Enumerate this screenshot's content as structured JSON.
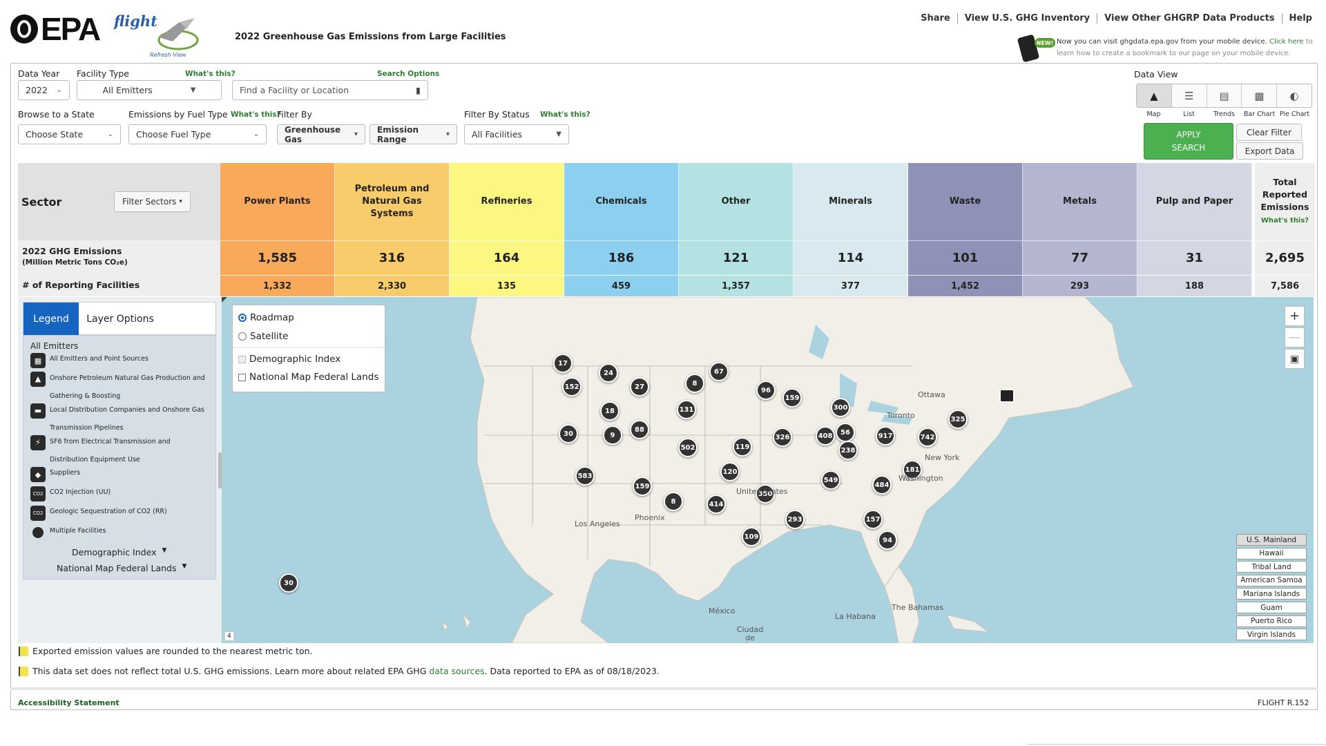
{
  "header": {
    "epa_logo": "EPA",
    "flight_logo": "flight",
    "flight_logo_caption": "Refresh View",
    "page_title": "2022 Greenhouse Gas Emissions from Large Facilities",
    "nav": [
      "Share",
      "View U.S. GHG Inventory",
      "View Other GHGRP Data Products",
      "Help"
    ],
    "new_badge": "NEW!",
    "mobile_notice_1": "Now you can visit ghgdata.epa.gov from your mobile device.",
    "mobile_notice_link": "Click here",
    "mobile_notice_2": "to learn how to create a bookmark to our page on your mobile device."
  },
  "filters": {
    "data_year_label": "Data Year",
    "data_year_value": "2022",
    "facility_type_label": "Facility Type",
    "facility_type_whats_this": "What's this?",
    "facility_type_value": "All Emitters",
    "search_options": "Search Options",
    "search_placeholder": "Find a Facility or Location",
    "browse_state_label": "Browse to a State",
    "browse_state_value": "Choose State",
    "fuel_type_label": "Emissions by Fuel Type",
    "fuel_type_whats_this": "What's this?",
    "fuel_type_value": "Choose Fuel Type",
    "filter_by_label": "Filter By",
    "greenhouse_gas": "Greenhouse Gas",
    "emission_range": "Emission Range",
    "filter_status_label": "Filter By Status",
    "filter_status_whats_this": "What's this?",
    "filter_status_value": "All Facilities"
  },
  "data_view": {
    "label": "Data View",
    "options": [
      "Map",
      "List",
      "Trends",
      "Bar Chart",
      "Pie Chart"
    ],
    "active": "Map",
    "apply_line1": "APPLY",
    "apply_line2": "SEARCH",
    "clear_filter": "Clear Filter",
    "export_data": "Export Data"
  },
  "sector_table": {
    "sector_label": "Sector",
    "filter_sectors": "Filter Sectors",
    "emissions_row_label": "2022 GHG Emissions",
    "emissions_row_sub": "(Million Metric Tons CO₂e)",
    "facilities_row_label": "# of Reporting Facilities",
    "sectors": [
      {
        "name": "Power Plants",
        "emissions": "1,585",
        "facilities": "1,332",
        "color": "#f9a95a"
      },
      {
        "name": "Petroleum and Natural Gas Systems",
        "emissions": "316",
        "facilities": "2,330",
        "color": "#f8cb6b"
      },
      {
        "name": "Refineries",
        "emissions": "164",
        "facilities": "135",
        "color": "#fbf781"
      },
      {
        "name": "Chemicals",
        "emissions": "186",
        "facilities": "459",
        "color": "#8dcfee"
      },
      {
        "name": "Other",
        "emissions": "121",
        "facilities": "1,357",
        "color": "#b4e1e1"
      },
      {
        "name": "Minerals",
        "emissions": "114",
        "facilities": "377",
        "color": "#d8e9f0"
      },
      {
        "name": "Waste",
        "emissions": "101",
        "facilities": "1,452",
        "color": "#8f92b6"
      },
      {
        "name": "Metals",
        "emissions": "77",
        "facilities": "293",
        "color": "#b4b6cf"
      },
      {
        "name": "Pulp and Paper",
        "emissions": "31",
        "facilities": "188",
        "color": "#d5d6e3"
      }
    ],
    "total_label": "Total Reported Emissions",
    "total_whats_this": "What's this?",
    "total_emissions": "2,695",
    "total_facilities": "7,586"
  },
  "legend_panel": {
    "tab_legend": "Legend",
    "tab_layers": "Layer Options",
    "heading": "All Emitters",
    "items": [
      "All Emitters and Point Sources",
      "Onshore Petroleum Natural Gas Production and Gathering & Boosting",
      "Local Distribution Companies and Onshore Gas Transmission Pipelines",
      "SF6 from Electrical Transmission and Distribution Equipment Use",
      "Suppliers",
      "CO2 Injection (UU)",
      "Geologic Sequestration of CO2 (RR)",
      "Multiple Facilities"
    ],
    "demographic_index": "Demographic Index",
    "federal_lands": "National Map Federal Lands"
  },
  "layer_box": {
    "roadmap": "Roadmap",
    "satellite": "Satellite",
    "demographic_index": "Demographic Index",
    "federal_lands": "National Map Federal Lands"
  },
  "map": {
    "markers": [
      "17",
      "24",
      "27",
      "8",
      "67",
      "152",
      "18",
      "131",
      "96",
      "159",
      "30",
      "9",
      "88",
      "300",
      "325",
      "502",
      "119",
      "326",
      "408",
      "56",
      "917",
      "742",
      "238",
      "583",
      "120",
      "181",
      "159",
      "549",
      "484",
      "8",
      "414",
      "350",
      "293",
      "157",
      "109",
      "94",
      "30"
    ],
    "labels": [
      "Ottawa",
      "Toronto",
      "New York",
      "Washington",
      "United States",
      "Los Angeles",
      "Phoenix",
      "México",
      "Ciudad de México",
      "La Habana",
      "The Bahamas"
    ],
    "scale": "4",
    "regions": [
      "U.S. Mainland",
      "Hawaii",
      "Tribal Land",
      "American Samoa",
      "Mariana Islands",
      "Guam",
      "Puerto Rico",
      "Virgin Islands"
    ]
  },
  "footer": {
    "note1": "Exported emission values are rounded to the nearest metric ton.",
    "note2_pre": "This data set does not reflect total U.S. GHG emissions. Learn more about related EPA GHG",
    "note2_link": "data sources",
    "note2_post": ". Data reported to EPA as of 08/18/2023.",
    "accessibility": "Accessibility Statement",
    "version": "FLIGHT R.152"
  }
}
